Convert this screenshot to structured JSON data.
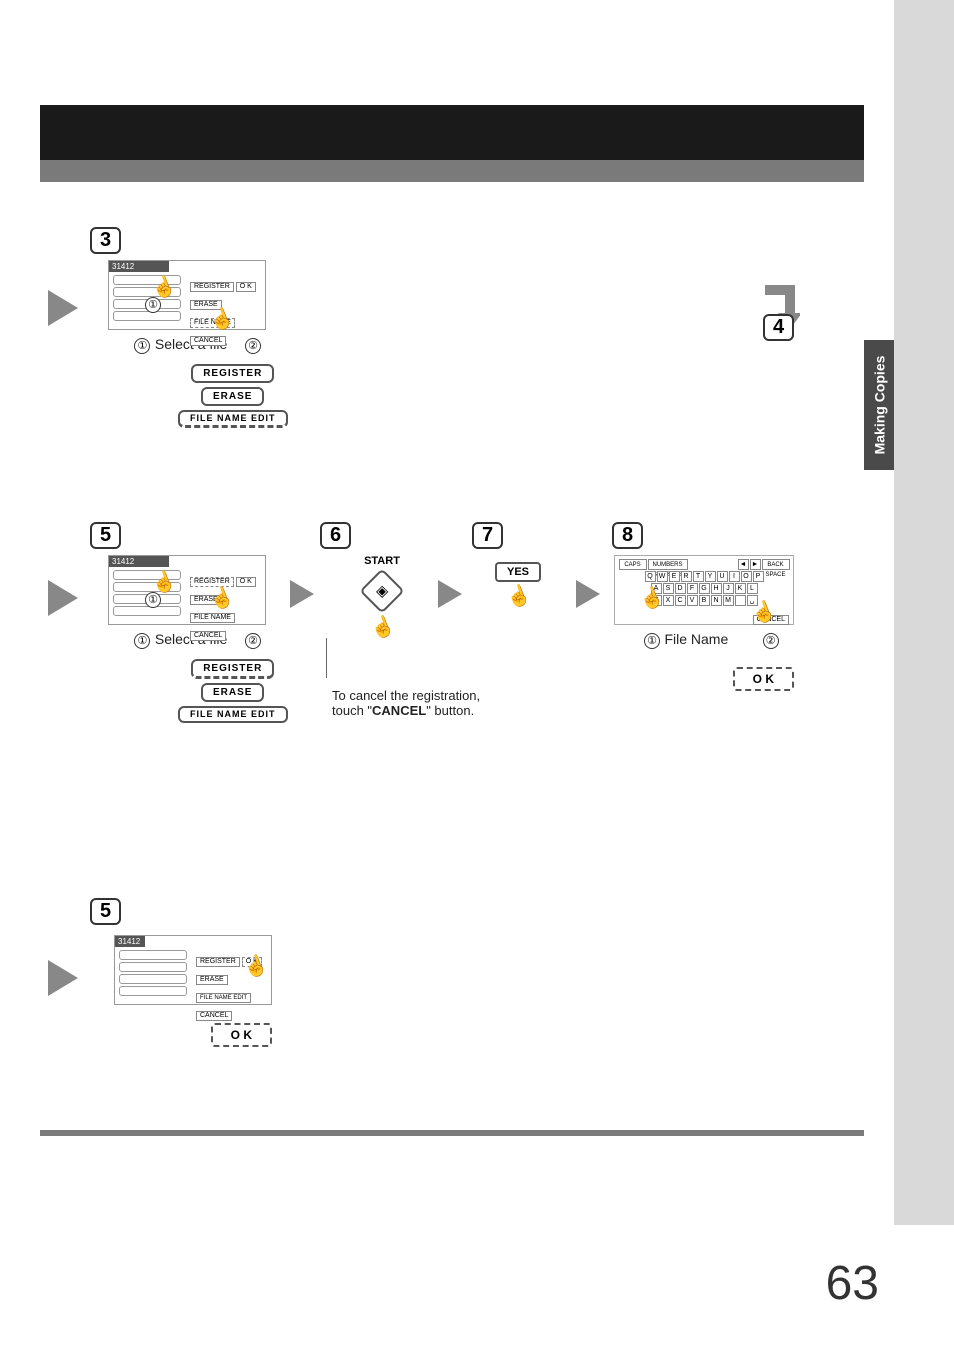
{
  "page_number": "63",
  "side_tab": "Making Copies",
  "step3": {
    "number": "3",
    "header": "31412",
    "caption_prefix": "①",
    "caption": "Select a file",
    "caption_suffix": "②",
    "btn_register": "REGISTER",
    "btn_erase": "ERASE",
    "btn_filename": "FILE NAME",
    "btn_ok": "O K",
    "btn_cancel": "CANCEL",
    "opt_register": "REGISTER",
    "opt_erase": "ERASE",
    "opt_filename": "FILE NAME EDIT"
  },
  "step4": {
    "number": "4"
  },
  "step5": {
    "number": "5",
    "header": "31412",
    "caption_prefix": "①",
    "caption": "Select a file",
    "caption_suffix": "②",
    "btn_register": "REGISTER",
    "btn_erase": "ERASE",
    "btn_filename": "FILE NAME",
    "btn_ok": "O K",
    "btn_cancel": "CANCEL",
    "opt_register": "REGISTER",
    "opt_erase": "ERASE",
    "opt_filename": "FILE NAME EDIT"
  },
  "step6": {
    "number": "6",
    "label": "START",
    "note_line1": "To cancel the registration,",
    "note_line2_a": "touch \"",
    "note_line2_b": "CANCEL",
    "note_line2_c": "\" button."
  },
  "step7": {
    "number": "7",
    "btn": "YES"
  },
  "step8": {
    "number": "8",
    "caps": "CAPS",
    "numbers": "NUMBERS SYMBOLS",
    "backspace": "BACK SPACE",
    "cancel": "CANCEL",
    "caption_prefix": "①",
    "caption": "File Name",
    "caption_suffix": "②",
    "ok": "O K",
    "row1": [
      "Q",
      "W",
      "E",
      "R",
      "T",
      "Y",
      "U",
      "I",
      "O",
      "P"
    ],
    "row2": [
      "A",
      "S",
      "D",
      "F",
      "G",
      "H",
      "J",
      "K",
      "L"
    ],
    "row3": [
      "Z",
      "X",
      "C",
      "V",
      "B",
      "N",
      "M",
      "",
      "␣"
    ]
  },
  "step5b": {
    "number": "5",
    "header": "31412",
    "btn_register": "REGISTER",
    "btn_erase": "ERASE",
    "btn_filename": "FILE NAME EDIT",
    "btn_ok": "O K",
    "btn_cancel": "CANCEL",
    "ok": "O K"
  }
}
